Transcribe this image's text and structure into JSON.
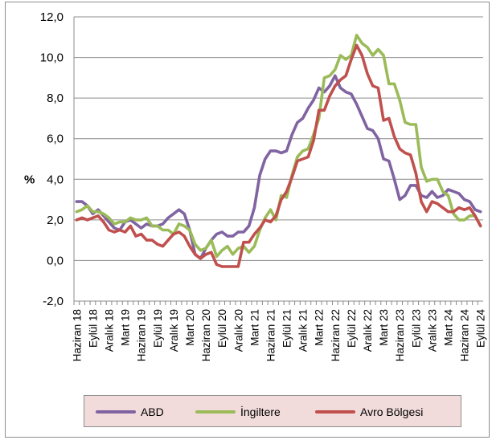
{
  "chart_data": {
    "type": "line",
    "title": "",
    "xlabel": "",
    "ylabel": "%",
    "ylim": [
      -2.0,
      12.0
    ],
    "yticks": [
      "-2,0",
      "0,0",
      "2,0",
      "4,0",
      "6,0",
      "8,0",
      "10,0",
      "12,0"
    ],
    "ytick_values": [
      -2,
      0,
      2,
      4,
      6,
      8,
      10,
      12
    ],
    "grid": true,
    "legend_position": "bottom",
    "x": [
      "2018-06",
      "2018-07",
      "2018-08",
      "2018-09",
      "2018-10",
      "2018-11",
      "2018-12",
      "2019-01",
      "2019-02",
      "2019-03",
      "2019-04",
      "2019-05",
      "2019-06",
      "2019-07",
      "2019-08",
      "2019-09",
      "2019-10",
      "2019-11",
      "2019-12",
      "2020-01",
      "2020-02",
      "2020-03",
      "2020-04",
      "2020-05",
      "2020-06",
      "2020-07",
      "2020-08",
      "2020-09",
      "2020-10",
      "2020-11",
      "2020-12",
      "2021-01",
      "2021-02",
      "2021-03",
      "2021-04",
      "2021-05",
      "2021-06",
      "2021-07",
      "2021-08",
      "2021-09",
      "2021-10",
      "2021-11",
      "2021-12",
      "2022-01",
      "2022-02",
      "2022-03",
      "2022-04",
      "2022-05",
      "2022-06",
      "2022-07",
      "2022-08",
      "2022-09",
      "2022-10",
      "2022-11",
      "2022-12",
      "2023-01",
      "2023-02",
      "2023-03",
      "2023-04",
      "2023-05",
      "2023-06",
      "2023-07",
      "2023-08",
      "2023-09",
      "2023-10",
      "2023-11",
      "2023-12",
      "2024-01",
      "2024-02",
      "2024-03",
      "2024-04",
      "2024-05",
      "2024-06",
      "2024-07",
      "2024-08",
      "2024-09"
    ],
    "tick_labels": [
      "Haziran 18",
      "Eylül 18",
      "Aralık 18",
      "Mart 19",
      "Haziran 19",
      "Eylül 19",
      "Aralık 19",
      "Mart 20",
      "Haziran 20",
      "Eylül 20",
      "Aralık 20",
      "Mart 21",
      "Haziran 21",
      "Eylül 21",
      "Aralık 21",
      "Mart 22",
      "Haziran 22",
      "Eylül 22",
      "Aralık 22",
      "Mart 23",
      "Haziran 23",
      "Eylül 23",
      "Aralık 23",
      "Mart 24",
      "Haziran 24",
      "Eylül 24"
    ],
    "series": [
      {
        "name": "ABD",
        "color": "#8064a2",
        "values": [
          2.9,
          2.9,
          2.7,
          2.3,
          2.5,
          2.2,
          1.9,
          1.6,
          1.5,
          1.9,
          2.0,
          1.8,
          1.6,
          1.8,
          1.7,
          1.7,
          1.8,
          2.1,
          2.3,
          2.5,
          2.3,
          1.5,
          0.3,
          0.1,
          0.6,
          1.0,
          1.3,
          1.4,
          1.2,
          1.2,
          1.4,
          1.4,
          1.7,
          2.6,
          4.2,
          5.0,
          5.4,
          5.4,
          5.3,
          5.4,
          6.2,
          6.8,
          7.0,
          7.5,
          7.9,
          8.5,
          8.3,
          8.6,
          9.1,
          8.5,
          8.3,
          8.2,
          7.7,
          7.1,
          6.5,
          6.4,
          6.0,
          5.0,
          4.9,
          4.0,
          3.0,
          3.2,
          3.7,
          3.7,
          3.2,
          3.1,
          3.4,
          3.1,
          3.2,
          3.5,
          3.4,
          3.3,
          3.0,
          2.9,
          2.5,
          2.4
        ]
      },
      {
        "name": "İngiltere",
        "color": "#9bbb59",
        "values": [
          2.4,
          2.5,
          2.7,
          2.4,
          2.4,
          2.3,
          2.1,
          1.8,
          1.9,
          1.9,
          2.1,
          2.0,
          2.0,
          2.1,
          1.7,
          1.7,
          1.5,
          1.5,
          1.3,
          1.8,
          1.7,
          1.5,
          0.8,
          0.5,
          0.6,
          1.0,
          0.2,
          0.5,
          0.7,
          0.3,
          0.6,
          0.7,
          0.4,
          0.7,
          1.5,
          2.1,
          2.5,
          2.0,
          3.2,
          3.1,
          4.2,
          5.1,
          5.4,
          5.5,
          6.2,
          7.0,
          9.0,
          9.1,
          9.4,
          10.1,
          9.9,
          10.1,
          11.1,
          10.7,
          10.5,
          10.1,
          10.4,
          10.1,
          8.7,
          8.7,
          7.9,
          6.8,
          6.7,
          6.7,
          4.6,
          3.9,
          4.0,
          4.0,
          3.4,
          3.2,
          2.3,
          2.0,
          2.0,
          2.2,
          2.2,
          1.7
        ]
      },
      {
        "name": "Avro Bölgesi",
        "color": "#c0504d",
        "values": [
          2.0,
          2.1,
          2.0,
          2.1,
          2.2,
          1.9,
          1.5,
          1.4,
          1.5,
          1.4,
          1.7,
          1.2,
          1.3,
          1.0,
          1.0,
          0.8,
          0.7,
          1.0,
          1.3,
          1.4,
          1.2,
          0.7,
          0.3,
          0.1,
          0.3,
          0.4,
          -0.2,
          -0.3,
          -0.3,
          -0.3,
          -0.3,
          0.9,
          0.9,
          1.3,
          1.6,
          2.0,
          1.9,
          2.2,
          3.0,
          3.4,
          4.1,
          4.9,
          5.0,
          5.1,
          5.9,
          7.4,
          7.4,
          8.1,
          8.6,
          8.9,
          9.1,
          9.9,
          10.6,
          10.1,
          9.2,
          8.6,
          8.5,
          6.9,
          7.0,
          6.1,
          5.5,
          5.3,
          5.2,
          4.3,
          2.9,
          2.4,
          2.9,
          2.8,
          2.6,
          2.4,
          2.4,
          2.6,
          2.5,
          2.6,
          2.2,
          1.7
        ]
      }
    ]
  },
  "legend": {
    "items": [
      {
        "label": "ABD",
        "color": "#8064a2"
      },
      {
        "label": "İngiltere",
        "color": "#9bbb59"
      },
      {
        "label": "Avro Bölgesi",
        "color": "#c0504d"
      }
    ]
  }
}
